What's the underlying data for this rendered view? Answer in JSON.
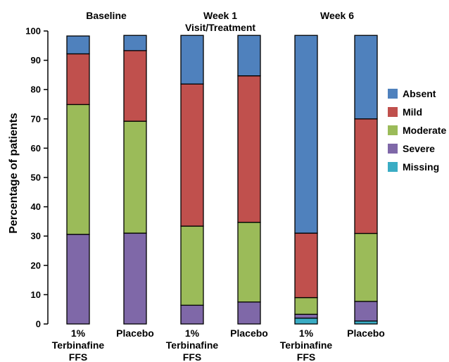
{
  "chart_data": {
    "type": "bar",
    "stacked": true,
    "ylabel": "Percentage of patients",
    "ylim": [
      0,
      100
    ],
    "yticks": [
      0,
      10,
      20,
      30,
      40,
      50,
      60,
      70,
      80,
      90,
      100
    ],
    "group_labels": [
      {
        "lines": [
          "Baseline"
        ]
      },
      {
        "lines": [
          "Week 1",
          "Visit/Treatment"
        ]
      },
      {
        "lines": [
          "Week 6"
        ]
      }
    ],
    "categories": [
      [
        "1%",
        "Terbinafine",
        "FFS"
      ],
      [
        "Placebo"
      ],
      [
        "1%",
        "Terbinafine",
        "FFS"
      ],
      [
        "Placebo"
      ],
      [
        "1%",
        "Terbinafine",
        "FFS"
      ],
      [
        "Placebo"
      ]
    ],
    "series": [
      {
        "name": "Missing",
        "color": "#3aacc4",
        "values": [
          0,
          0,
          0,
          0,
          2.0,
          1.0
        ]
      },
      {
        "name": "Severe",
        "color": "#7f68a8",
        "values": [
          30.6,
          31.0,
          6.4,
          7.5,
          1.3,
          6.7
        ]
      },
      {
        "name": "Moderate",
        "color": "#9bbb59",
        "values": [
          44.3,
          38.2,
          27.0,
          27.2,
          5.7,
          23.2
        ]
      },
      {
        "name": "Mild",
        "color": "#c0504d",
        "values": [
          17.3,
          24.1,
          48.5,
          50.0,
          22.0,
          39.1
        ]
      },
      {
        "name": "Absent",
        "color": "#4f81bd",
        "values": [
          6.1,
          5.2,
          16.6,
          13.8,
          67.5,
          28.5
        ]
      }
    ],
    "legend_order": [
      "Absent",
      "Mild",
      "Moderate",
      "Severe",
      "Missing"
    ],
    "legend_position": "right"
  }
}
